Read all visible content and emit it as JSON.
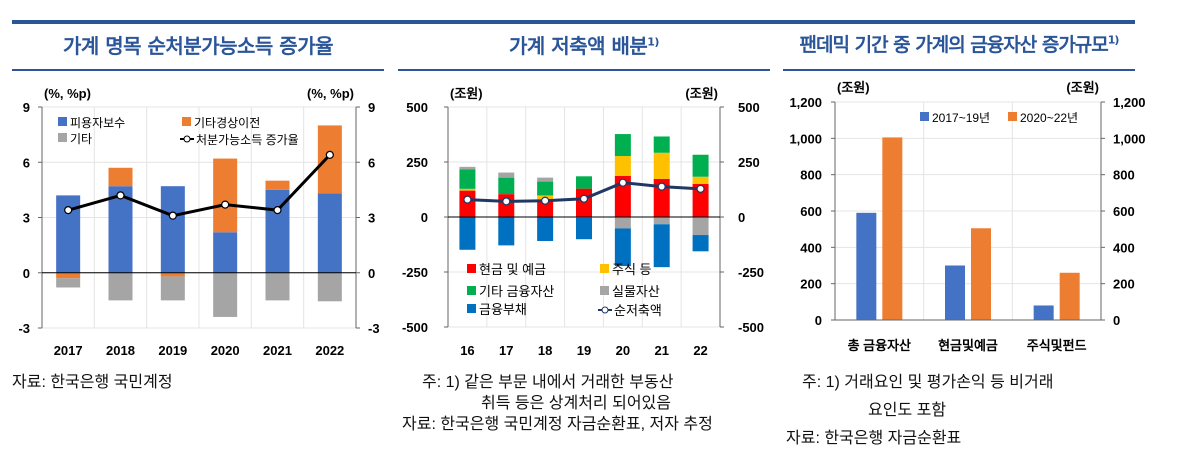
{
  "chart_data": [
    {
      "type": "bar",
      "stacked": true,
      "title": "가계 명목 순처분가능소득 증가율",
      "unit_left": "(%, %p)",
      "unit_right": "(%, %p)",
      "ylim": [
        -3,
        9
      ],
      "yticks": [
        -3,
        0,
        3,
        6,
        9
      ],
      "categories": [
        "2017",
        "2018",
        "2019",
        "2020",
        "2021",
        "2022"
      ],
      "series": [
        {
          "name": "피용자보수",
          "color": "#4472c4",
          "values": [
            4.2,
            4.7,
            4.7,
            2.2,
            4.5,
            4.3
          ]
        },
        {
          "name": "기타경상이전",
          "color": "#ed7d31",
          "values": [
            -0.3,
            1.0,
            -0.2,
            4.0,
            0.5,
            3.7
          ]
        },
        {
          "name": "기타",
          "color": "#a5a5a5",
          "values": [
            -0.5,
            -1.5,
            -1.3,
            -2.4,
            -1.5,
            -1.55
          ]
        }
      ],
      "line": {
        "name": "처분가능소득 증가율",
        "color": "#000000",
        "values": [
          3.4,
          4.2,
          3.1,
          3.7,
          3.4,
          6.4
        ]
      },
      "grid": true
    },
    {
      "type": "bar",
      "stacked": true,
      "title": "가계 저축액 배분",
      "title_sup": "1)",
      "unit_left": "(조원)",
      "unit_right": "(조원)",
      "ylim": [
        -500,
        500
      ],
      "yticks": [
        -500,
        -250,
        0,
        250,
        500
      ],
      "categories": [
        "16",
        "17",
        "18",
        "19",
        "20",
        "21",
        "22"
      ],
      "series": [
        {
          "name": "현금 및 예금",
          "color": "#ff0000",
          "values": [
            120,
            104,
            79,
            129,
            187,
            173,
            150
          ]
        },
        {
          "name": "주식 등",
          "color": "#ffc000",
          "values": [
            8,
            0,
            19,
            -3,
            90,
            119,
            33
          ]
        },
        {
          "name": "기타 금융자산",
          "color": "#00b050",
          "values": [
            88,
            75,
            63,
            56,
            100,
            74,
            100
          ]
        },
        {
          "name": "실물자산",
          "color": "#a5a5a5",
          "values": [
            12,
            23,
            18,
            0,
            -52,
            -33,
            -82
          ]
        },
        {
          "name": "금융부채",
          "color": "#0070c0",
          "values": [
            -149,
            -129,
            -109,
            -98,
            -171,
            -195,
            -74
          ]
        }
      ],
      "line": {
        "name": "순저축액",
        "color": "#1f3864",
        "values": [
          79,
          71,
          74,
          83,
          156,
          138,
          128
        ]
      },
      "grid": true
    },
    {
      "type": "bar",
      "stacked": false,
      "title": "팬데믹 기간 중 가계의 금융자산 증가규모",
      "title_sup": "1)",
      "unit_left": "(조원)",
      "unit_right": "(조원)",
      "ylim": [
        0,
        1200
      ],
      "yticks": [
        0,
        200,
        400,
        600,
        800,
        1000,
        1200
      ],
      "ytick_labels": [
        "0",
        "200",
        "400",
        "600",
        "800",
        "1,000",
        "1,200"
      ],
      "categories": [
        "총 금융자산",
        "현금및예금",
        "주식및펀드"
      ],
      "series": [
        {
          "name": "2017~19년",
          "color": "#4472c4",
          "values": [
            590,
            300,
            80
          ]
        },
        {
          "name": "2020~22년",
          "color": "#ed7d31",
          "values": [
            1005,
            505,
            260
          ]
        }
      ],
      "grid": true
    }
  ],
  "notes": {
    "c1_source": "자료: 한국은행 국민계정",
    "c2_note1": "주: 1) 같은 부문 내에서 거래한 부동산",
    "c2_note2": "취득 등은 상계처리 되어있음",
    "c2_source": "자료: 한국은행 국민계정 자금순환표, 저자 추정",
    "c3_note1": "주: 1) 거래요인 및 평가손익 등 비거래",
    "c3_note2": "요인도 포함",
    "c3_source": "자료: 한국은행 자금순환표"
  }
}
